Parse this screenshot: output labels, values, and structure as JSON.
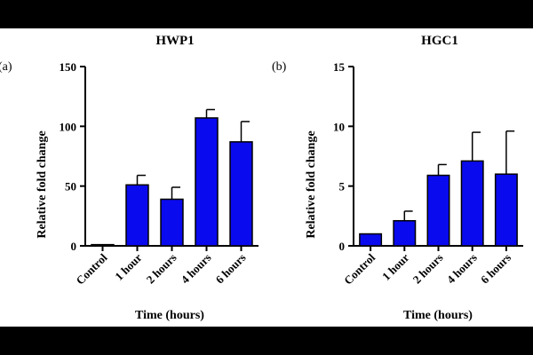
{
  "figure": {
    "panels": [
      "(a)",
      "(b)"
    ]
  },
  "chart_data": [
    {
      "type": "bar",
      "panel": "(a)",
      "title": "HWP1",
      "xlabel": "Time (hours)",
      "ylabel": "Relative fold change",
      "ylim": [
        0,
        150
      ],
      "yticks": [
        0,
        50,
        100,
        150
      ],
      "categories": [
        "Control",
        "1 hour",
        "2 hours",
        "4 hours",
        "6 hours"
      ],
      "values": [
        1,
        51,
        39,
        107,
        87
      ],
      "errors": [
        0,
        8,
        10,
        7,
        17
      ],
      "bar_color": "#0a0aee",
      "grid": false
    },
    {
      "type": "bar",
      "panel": "(b)",
      "title": "HGC1",
      "xlabel": "Time (hours)",
      "ylabel": "Relative fold change",
      "ylim": [
        0,
        15
      ],
      "yticks": [
        0,
        5,
        10,
        15
      ],
      "categories": [
        "Control",
        "1 hour",
        "2 hours",
        "4 hours",
        "6 hours"
      ],
      "values": [
        1,
        2.1,
        5.9,
        7.1,
        6.0
      ],
      "errors": [
        0,
        0.8,
        0.9,
        2.4,
        3.6
      ],
      "bar_color": "#0a0aee",
      "grid": false
    }
  ]
}
